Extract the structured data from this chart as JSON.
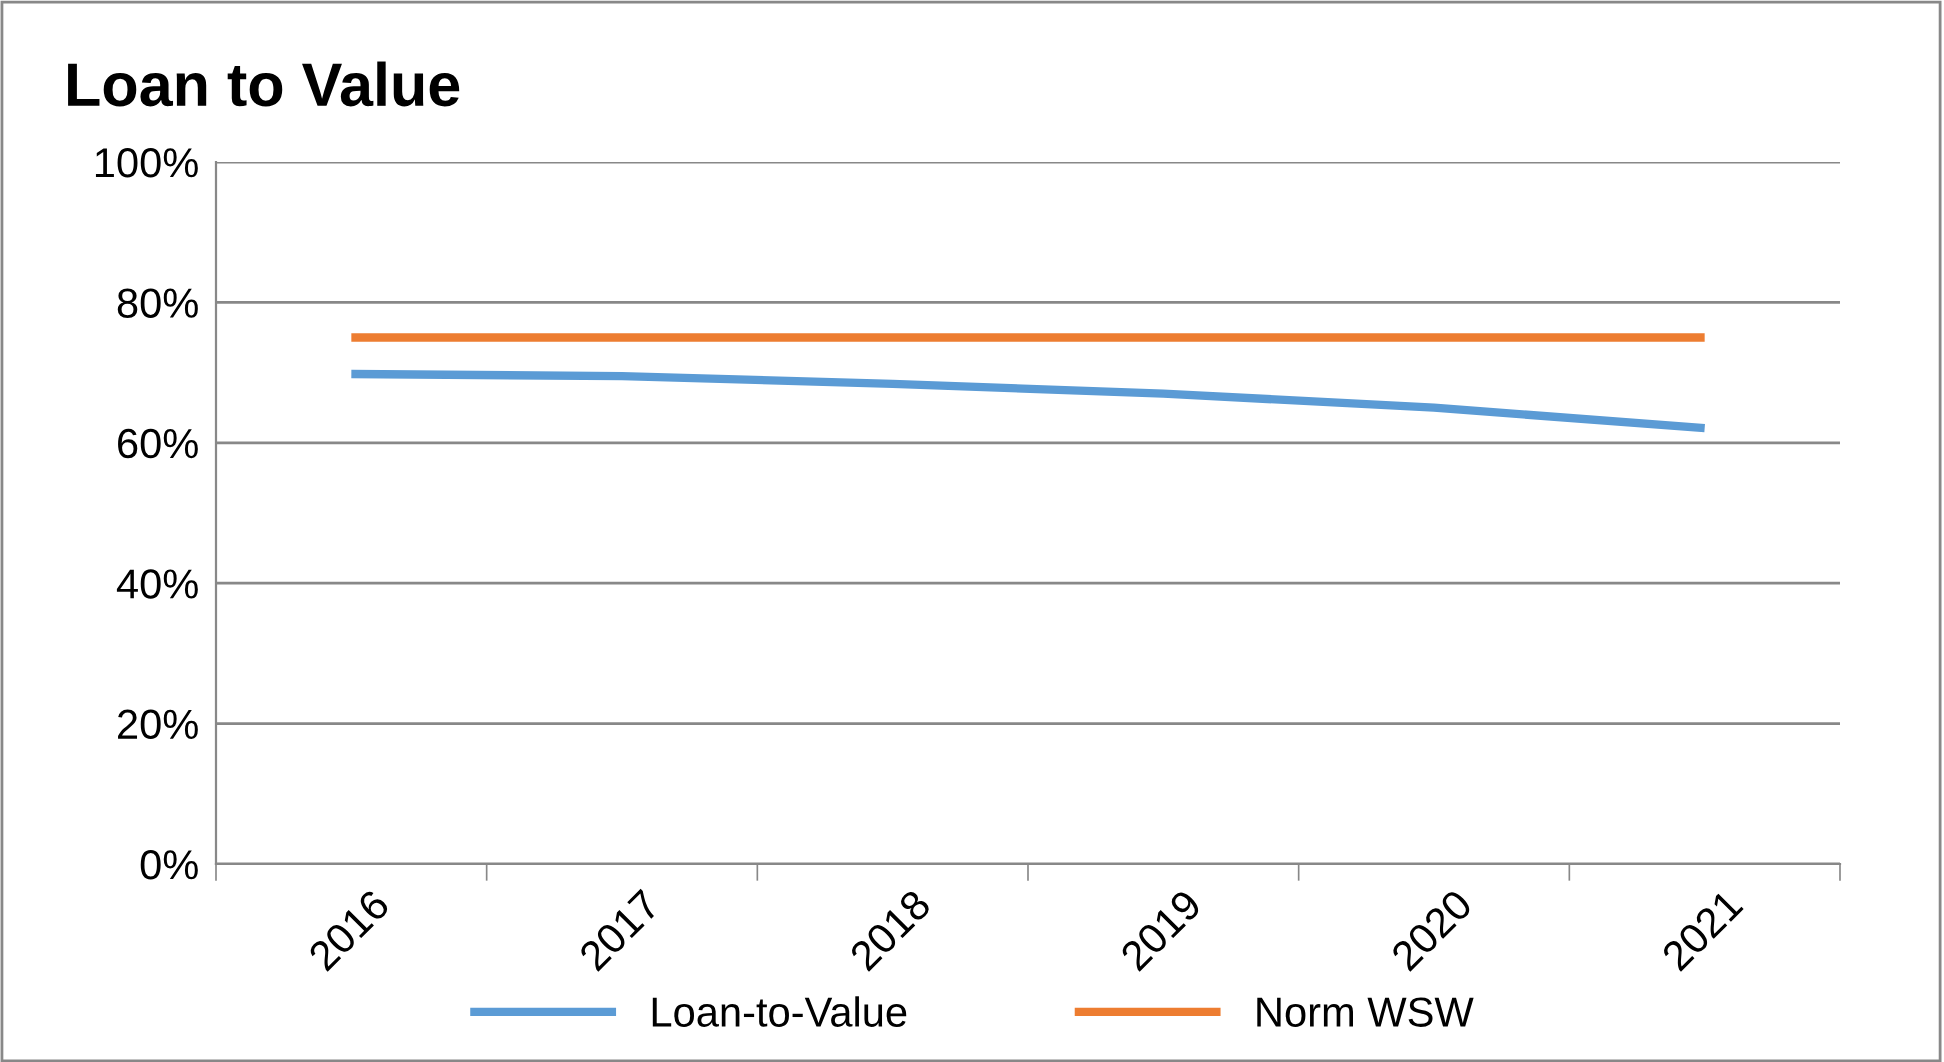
{
  "chart_data": {
    "type": "line",
    "title": "Loan to Value",
    "categories": [
      "2016",
      "2017",
      "2018",
      "2019",
      "2020",
      "2021"
    ],
    "series": [
      {
        "name": "Loan-to-Value",
        "color": "#5b9bd5",
        "values": [
          69.8,
          69.5,
          68.4,
          67,
          65,
          62.1
        ]
      },
      {
        "name": "Norm WSW",
        "color": "#ed7d31",
        "values": [
          75,
          75,
          75,
          75,
          75,
          75
        ]
      }
    ],
    "ylim": [
      0,
      100
    ],
    "yticks": [
      {
        "value": 0,
        "label": "0%"
      },
      {
        "value": 20,
        "label": "20%"
      },
      {
        "value": 40,
        "label": "40%"
      },
      {
        "value": 60,
        "label": "60%"
      },
      {
        "value": 80,
        "label": "80%"
      },
      {
        "value": 100,
        "label": "100%"
      }
    ],
    "grid": "y",
    "legend": "bottom",
    "marker": "none",
    "line_style": "solid"
  }
}
